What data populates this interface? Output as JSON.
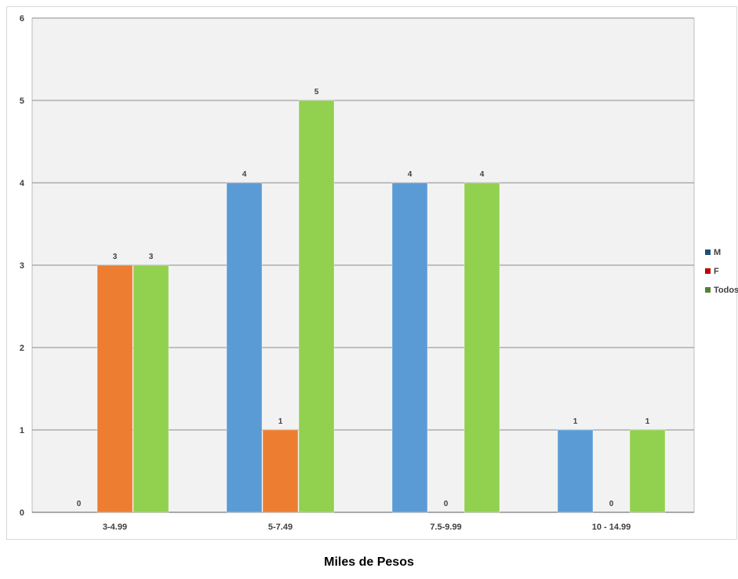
{
  "chart_data": {
    "type": "bar",
    "categories": [
      "3-4.99",
      "5-7.49",
      "7.5-9.99",
      "10 - 14.99"
    ],
    "series": [
      {
        "name": "M",
        "values": [
          0,
          4,
          4,
          1
        ],
        "color": "#5b9bd5"
      },
      {
        "name": "F",
        "values": [
          3,
          1,
          0,
          0
        ],
        "color": "#ed7d31"
      },
      {
        "name": "Todos",
        "values": [
          3,
          5,
          4,
          1
        ],
        "color": "#92d050"
      }
    ],
    "data_labels": [
      [
        "0",
        "4",
        "4",
        "1"
      ],
      [
        "3",
        "1",
        "0",
        "0"
      ],
      [
        "3",
        "5",
        "4",
        "1"
      ]
    ],
    "y_ticks": [
      "0",
      "1",
      "2",
      "3",
      "4",
      "5",
      "6"
    ],
    "ylim": [
      0,
      6
    ],
    "xlabel": "Miles de Pesos",
    "ylabel": "",
    "grid": true,
    "legend_position": "right",
    "plot_background": "#f2f2f2",
    "legend_colors": [
      "#1f4e79",
      "#c00000",
      "#538135"
    ]
  }
}
